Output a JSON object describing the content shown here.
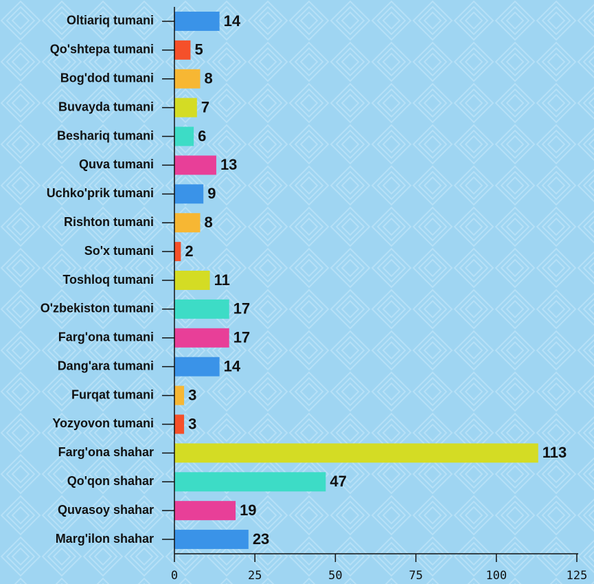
{
  "chart_data": {
    "type": "bar",
    "orientation": "horizontal",
    "categories": [
      "Oltiariq tumani",
      "Qo'shtepa tumani",
      "Bog'dod tumani",
      "Buvayda tumani",
      "Beshariq tumani",
      "Quva tumani",
      "Uchko'prik tumani",
      "Rishton tumani",
      "So'x tumani",
      "Toshloq tumani",
      "O'zbekiston tumani",
      "Farg'ona tumani",
      "Dang'ara tumani",
      "Furqat tumani",
      "Yozyovon tumani",
      "Farg'ona shahar",
      "Qo'qon shahar",
      "Quvasoy shahar",
      "Marg'ilon shahar"
    ],
    "values": [
      14,
      5,
      8,
      7,
      6,
      13,
      9,
      8,
      2,
      11,
      17,
      17,
      14,
      3,
      3,
      113,
      47,
      19,
      23
    ],
    "colors": [
      "#3a93e8",
      "#f5502a",
      "#f7b733",
      "#d4dc24",
      "#3ddcc6",
      "#e83f98",
      "#3a93e8",
      "#f7b733",
      "#f5502a",
      "#d4dc24",
      "#3ddcc6",
      "#e83f98",
      "#3a93e8",
      "#f7b733",
      "#f5502a",
      "#d4dc24",
      "#3ddcc6",
      "#e83f98",
      "#3a93e8"
    ],
    "xlim": [
      0,
      125
    ],
    "xticks": [
      0,
      25,
      50,
      75,
      100,
      125
    ]
  }
}
